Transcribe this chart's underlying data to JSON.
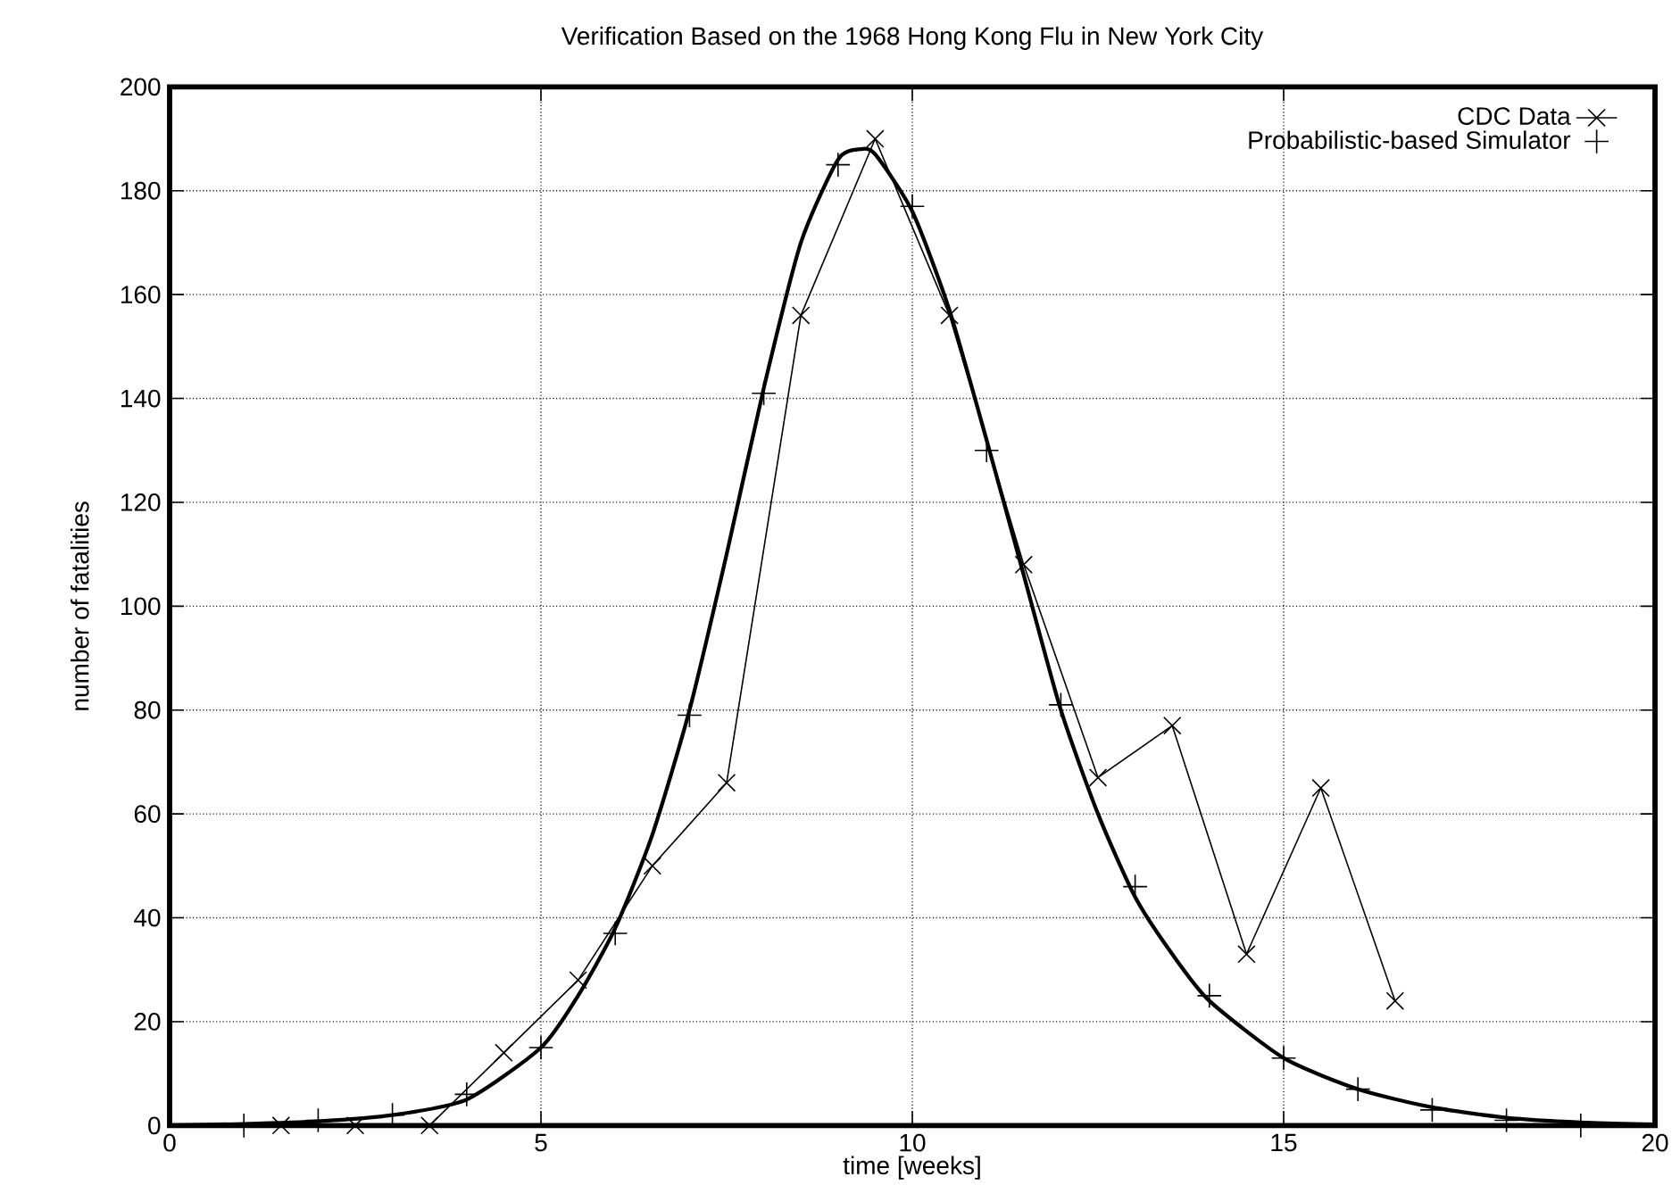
{
  "chart_data": {
    "type": "line",
    "title": "Verification Based on the 1968 Hong Kong Flu in New York City",
    "xlabel": "time [weeks]",
    "ylabel": "number of fatalities",
    "xlim": [
      0,
      20
    ],
    "ylim": [
      0,
      200
    ],
    "xticks": [
      0,
      5,
      10,
      15,
      20
    ],
    "yticks": [
      0,
      20,
      40,
      60,
      80,
      100,
      120,
      140,
      160,
      180,
      200
    ],
    "grid": true,
    "legend": "top right",
    "series": [
      {
        "name": "CDC Data",
        "marker": "cross",
        "color": "#000000",
        "x": [
          1.5,
          2.5,
          3.5,
          4.5,
          5.5,
          6.5,
          7.5,
          8.5,
          9.5,
          10.5,
          11.5,
          12.5,
          13.5,
          14.5,
          15.5,
          16.5
        ],
        "values": [
          0,
          0,
          0,
          14,
          28,
          50,
          66,
          156,
          190,
          156,
          108,
          67,
          77,
          33,
          65,
          24
        ]
      },
      {
        "name": "Probabilistic-based Simulator",
        "type": "scatter",
        "marker": "plus",
        "color": "#000000",
        "x": [
          1,
          2,
          3,
          4,
          5,
          6,
          7,
          8,
          9,
          10,
          11,
          12,
          13,
          14,
          15,
          16,
          17,
          18,
          19
        ],
        "values": [
          0,
          1,
          2,
          6,
          15,
          37,
          79,
          141,
          185,
          177,
          130,
          81,
          46,
          25,
          13,
          7,
          3,
          1,
          0
        ]
      },
      {
        "marker": "none",
        "color": "#000000",
        "x": [
          0,
          1,
          2,
          3,
          4,
          5,
          5.5,
          6,
          6.5,
          7,
          7.5,
          8,
          8.5,
          9,
          9.3,
          9.5,
          10,
          10.5,
          11,
          11.5,
          12,
          12.5,
          13,
          13.5,
          14,
          15,
          16,
          17,
          18,
          19,
          20
        ],
        "values": [
          0,
          0.3,
          0.8,
          2,
          5,
          15,
          25,
          38,
          56,
          80,
          110,
          142,
          170,
          186,
          188,
          187,
          176,
          157,
          132,
          106,
          80,
          60,
          44,
          33,
          24,
          13,
          7,
          3.5,
          1.5,
          0.6,
          0.2
        ]
      }
    ]
  }
}
